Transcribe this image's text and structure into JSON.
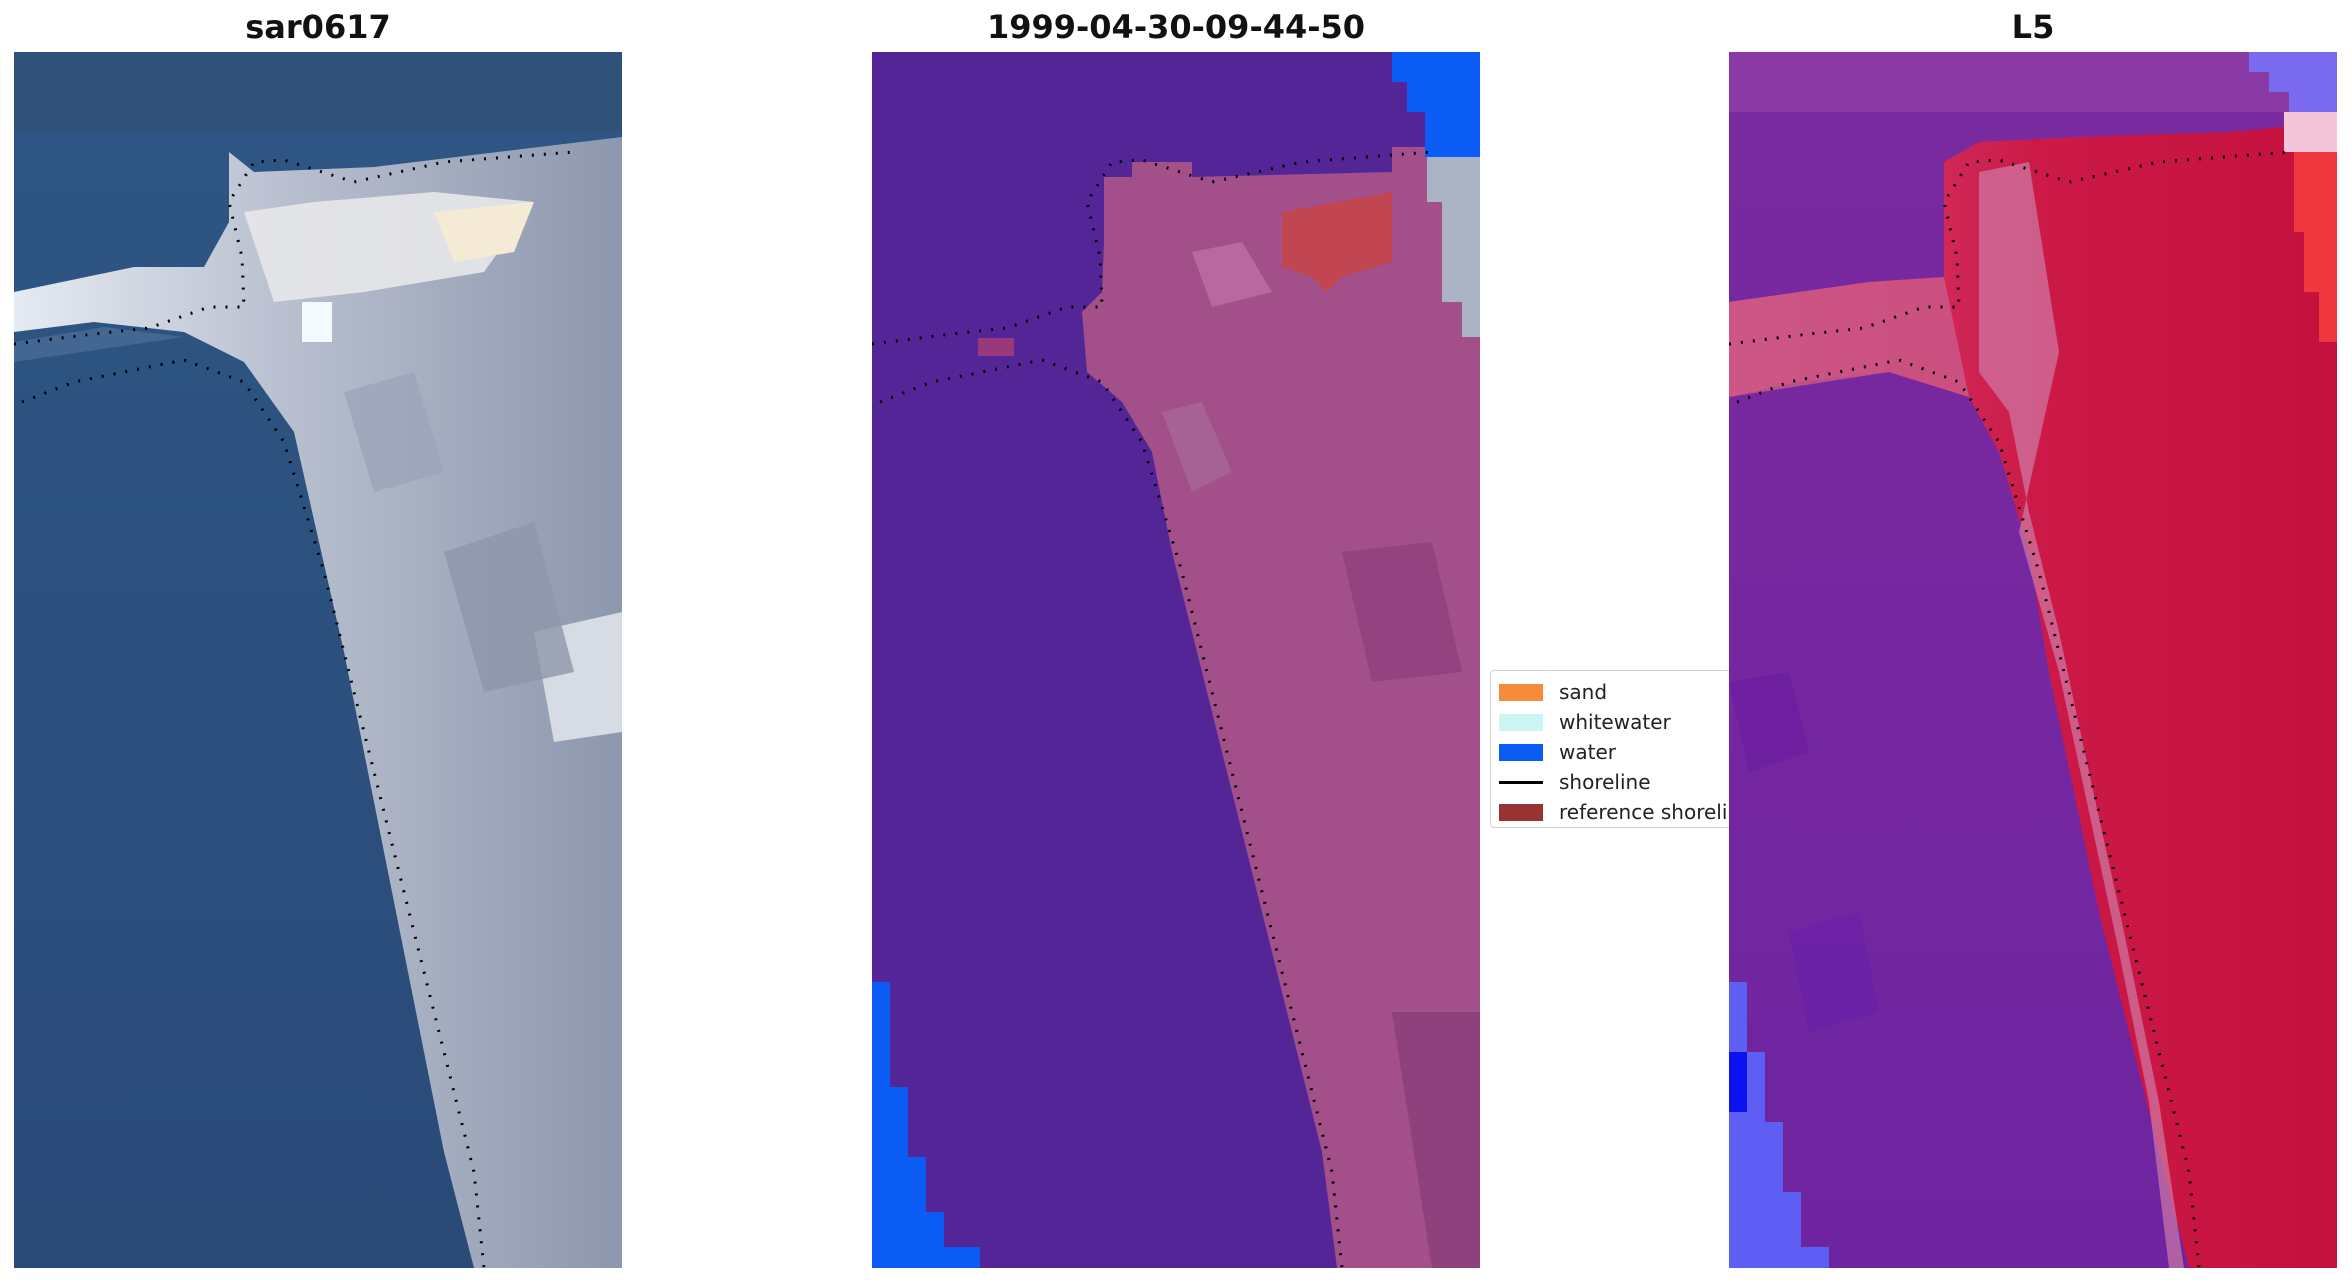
{
  "panels": [
    {
      "title": "sar0617"
    },
    {
      "title": "1999-04-30-09-44-50"
    },
    {
      "title": "L5"
    }
  ],
  "legend": {
    "items": [
      {
        "label": "sand",
        "color": "#f58c3c"
      },
      {
        "label": "whitewater",
        "color": "#ccf5f5"
      },
      {
        "label": "water",
        "color": "#0a5cf5"
      },
      {
        "label": "shoreline",
        "color": "#000000"
      },
      {
        "label": "reference shoreline",
        "color": "#993333"
      }
    ]
  },
  "colors": {
    "ocean_rgb": "#2d4f7c",
    "beach_rgb": "#c9cdd6",
    "class_background": "#542596",
    "class_land": "#a24f8a",
    "index_background": "#7a2aa0",
    "index_land": "#c4103d"
  }
}
